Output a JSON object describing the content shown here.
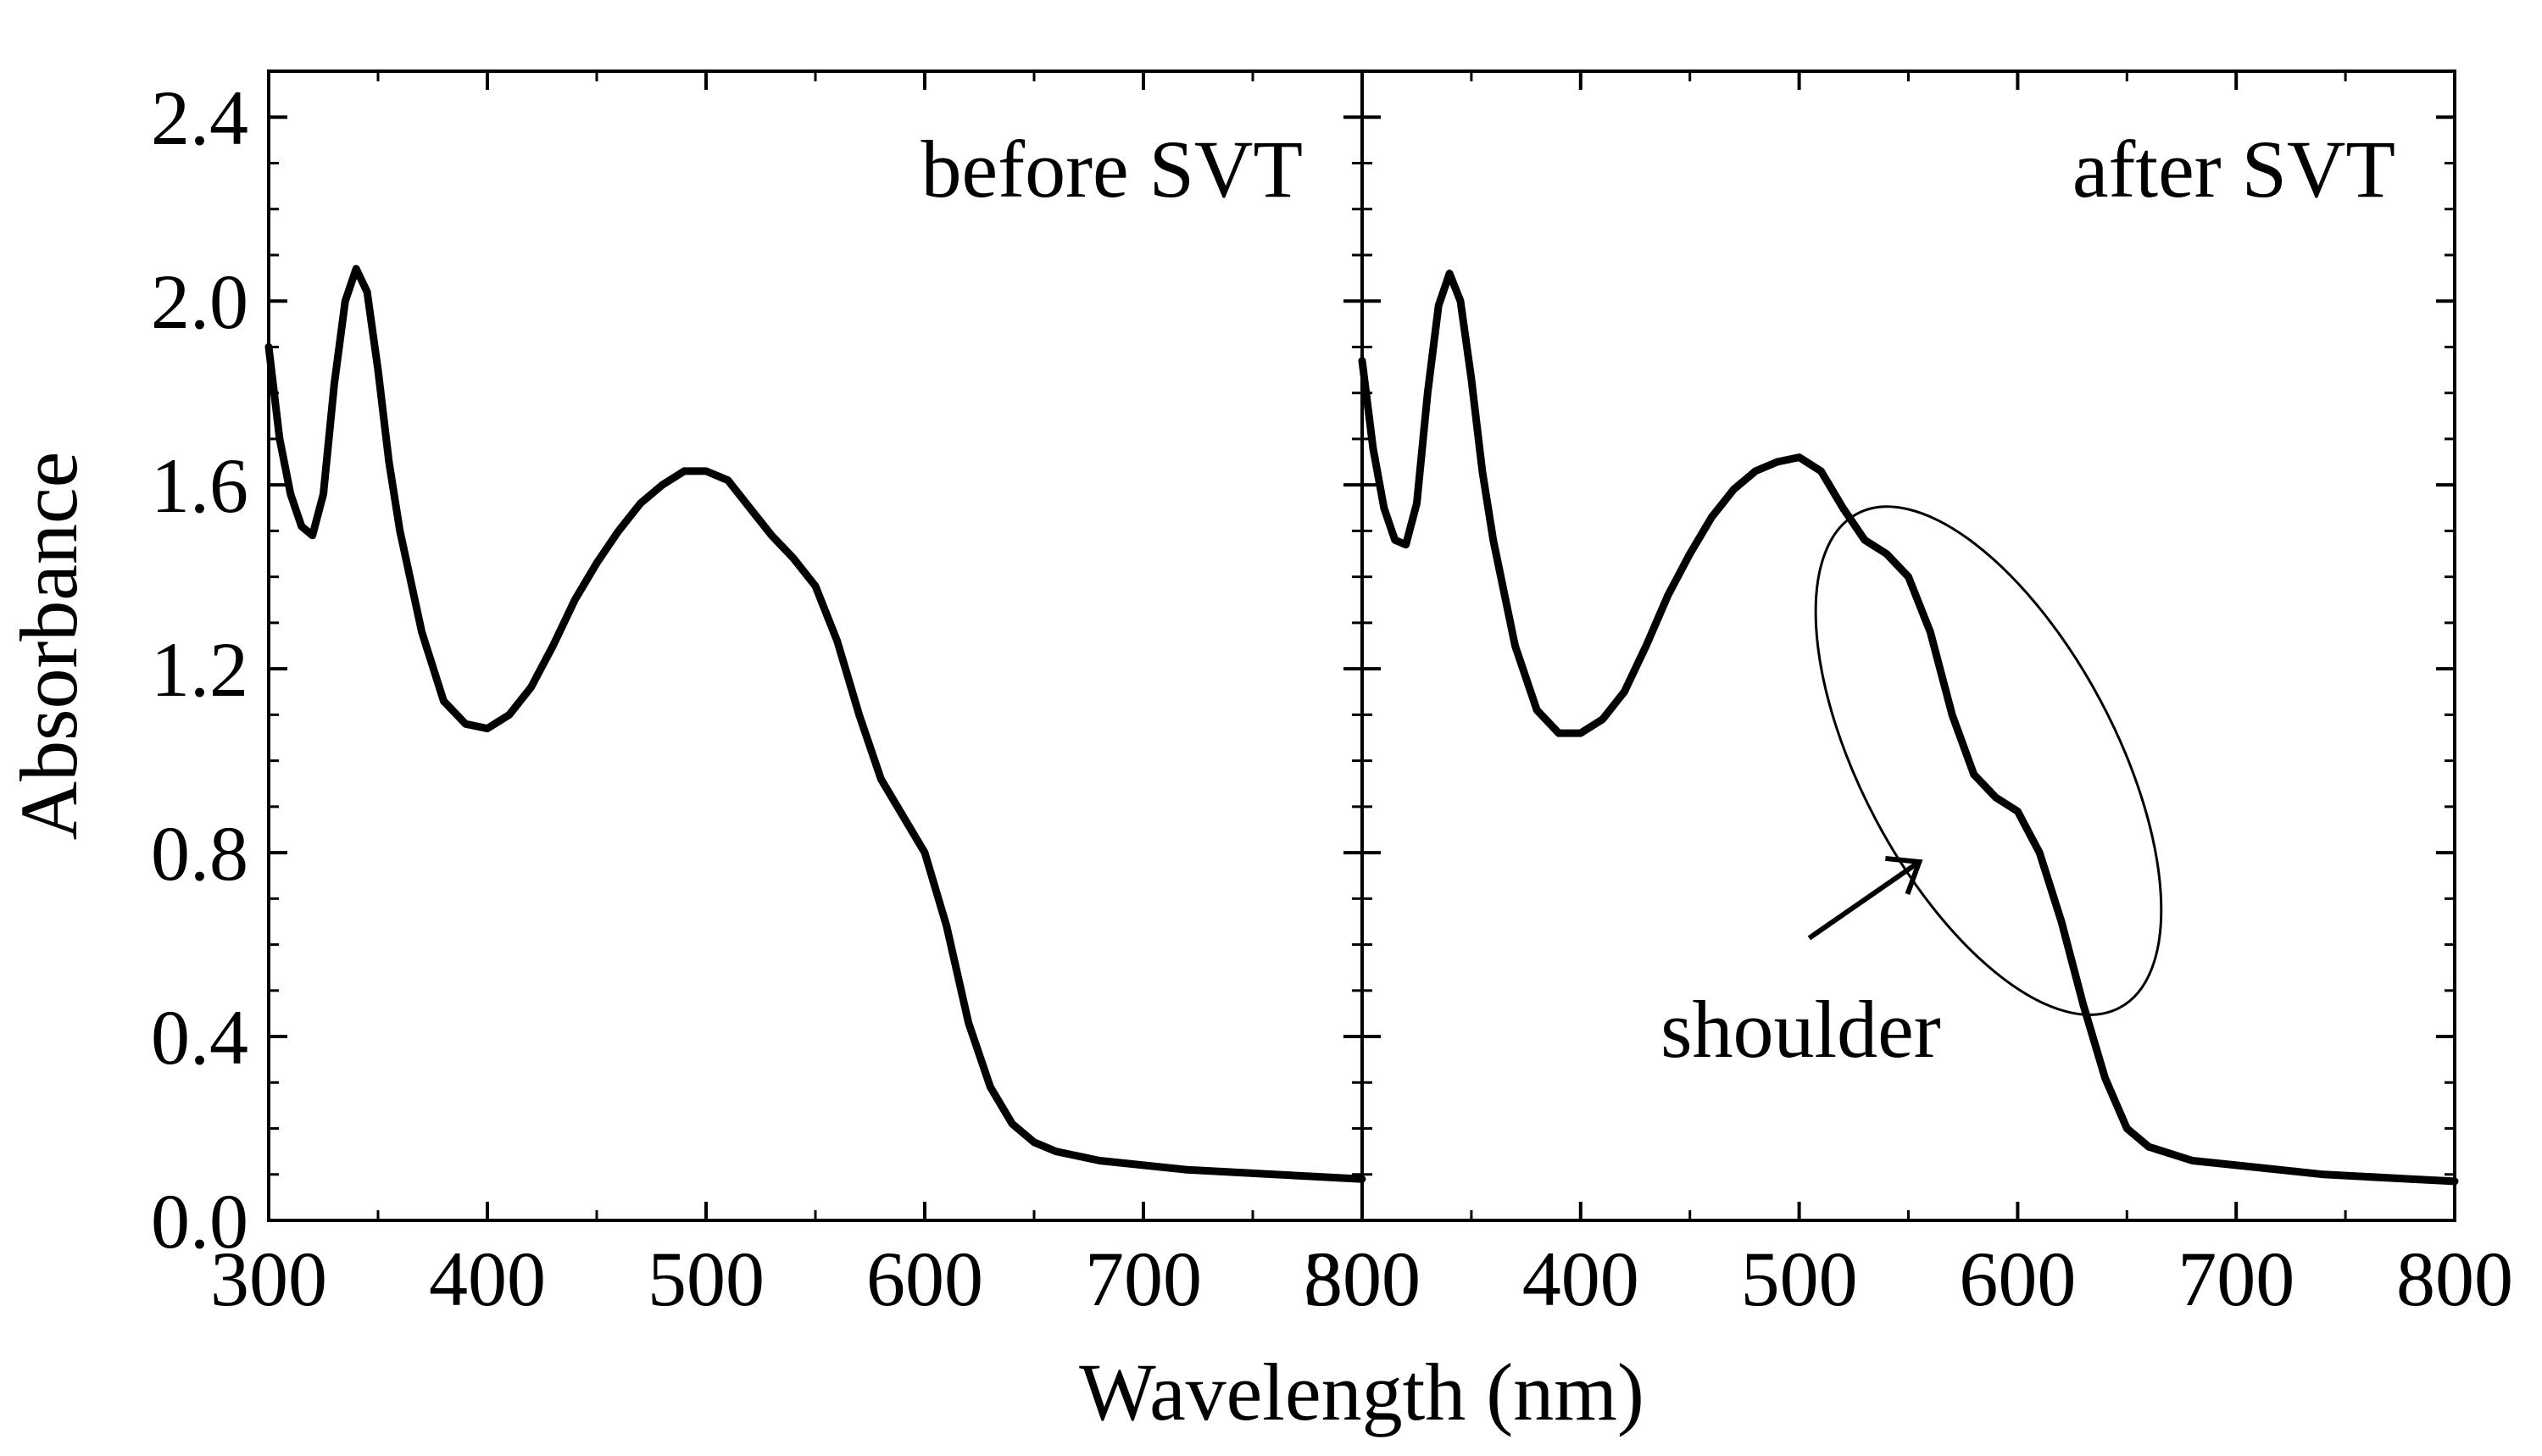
{
  "chart_data": {
    "type": "line",
    "xlabel": "Wavelength (nm)",
    "ylabel": "Absorbance",
    "xlim": [
      300,
      800
    ],
    "ylim": [
      0.0,
      2.5
    ],
    "x_ticks": [
      "300",
      "400",
      "500",
      "600",
      "700",
      "800"
    ],
    "y_ticks": [
      "0.0",
      "0.4",
      "0.8",
      "1.2",
      "1.6",
      "2.0",
      "2.4"
    ],
    "grid": false,
    "panels": [
      {
        "title": "before SVT",
        "series": [
          {
            "x": [
              300,
              305,
              310,
              315,
              320,
              325,
              330,
              335,
              340,
              345,
              350,
              355,
              360,
              370,
              380,
              390,
              400,
              410,
              420,
              430,
              440,
              450,
              460,
              470,
              480,
              490,
              500,
              510,
              520,
              530,
              540,
              550,
              560,
              570,
              580,
              590,
              600,
              610,
              620,
              630,
              640,
              650,
              660,
              680,
              700,
              720,
              740,
              760,
              780,
              800
            ],
            "y": [
              1.9,
              1.7,
              1.58,
              1.51,
              1.49,
              1.58,
              1.82,
              2.0,
              2.07,
              2.02,
              1.85,
              1.65,
              1.5,
              1.28,
              1.13,
              1.08,
              1.07,
              1.1,
              1.16,
              1.25,
              1.35,
              1.43,
              1.5,
              1.56,
              1.6,
              1.63,
              1.63,
              1.61,
              1.55,
              1.49,
              1.44,
              1.38,
              1.26,
              1.1,
              0.96,
              0.88,
              0.8,
              0.64,
              0.43,
              0.29,
              0.21,
              0.17,
              0.15,
              0.13,
              0.12,
              0.11,
              0.105,
              0.1,
              0.095,
              0.09
            ]
          }
        ]
      },
      {
        "title": "after SVT",
        "series": [
          {
            "x": [
              300,
              305,
              310,
              315,
              320,
              325,
              330,
              335,
              340,
              345,
              350,
              355,
              360,
              370,
              380,
              390,
              400,
              410,
              420,
              430,
              440,
              450,
              460,
              470,
              480,
              490,
              500,
              510,
              520,
              530,
              540,
              550,
              560,
              570,
              580,
              590,
              600,
              610,
              620,
              630,
              640,
              650,
              660,
              680,
              700,
              720,
              740,
              760,
              780,
              800
            ],
            "y": [
              1.87,
              1.68,
              1.55,
              1.48,
              1.47,
              1.56,
              1.8,
              1.99,
              2.06,
              2.0,
              1.83,
              1.63,
              1.48,
              1.25,
              1.11,
              1.06,
              1.06,
              1.09,
              1.15,
              1.25,
              1.36,
              1.45,
              1.53,
              1.59,
              1.63,
              1.65,
              1.66,
              1.63,
              1.55,
              1.48,
              1.45,
              1.4,
              1.28,
              1.1,
              0.97,
              0.92,
              0.89,
              0.8,
              0.65,
              0.47,
              0.31,
              0.2,
              0.16,
              0.13,
              0.12,
              0.11,
              0.1,
              0.095,
              0.09,
              0.085
            ]
          }
        ],
        "annotations": [
          {
            "text": "shoulder",
            "points_to_x": 555,
            "points_to_y": 0.78,
            "highlight_range_x": [
              530,
              620
            ]
          }
        ]
      }
    ]
  }
}
